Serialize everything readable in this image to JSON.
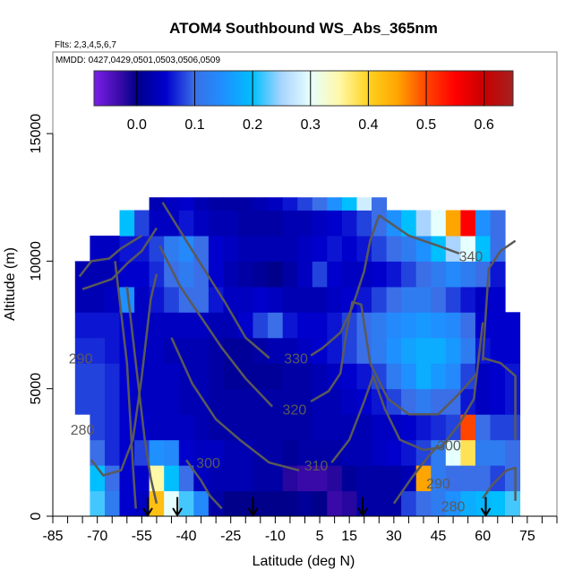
{
  "chart_data": {
    "type": "heatmap",
    "title": "ATOM4 Southbound WS_Abs_365nm",
    "subtitle_flights": "Flts: 2,3,4,5,6,7",
    "subtitle_dates": "MMDD: 0427,0429,0501,0503,0506,0509",
    "xlabel": "Latitude (deg N)",
    "ylabel": "Altitude (m)",
    "xlim": [
      -85,
      85
    ],
    "ylim": [
      0,
      18200
    ],
    "xticks": [
      -85,
      -70,
      -55,
      -40,
      -25,
      -10,
      5,
      15,
      30,
      45,
      60,
      75
    ],
    "xminor_step": 5,
    "yticks": [
      0,
      5000,
      10000,
      15000
    ],
    "colorbar": {
      "range": [
        -0.074,
        0.65
      ],
      "ticks": [
        0.0,
        0.1,
        0.2,
        0.3,
        0.4,
        0.5,
        0.6
      ],
      "tick_labels": [
        "0.0",
        "0.1",
        "0.2",
        "0.3",
        "0.4",
        "0.5",
        "0.6"
      ],
      "stops": [
        {
          "v": -0.074,
          "c": "#7a1fe8"
        },
        {
          "v": -0.03,
          "c": "#3a0aa8"
        },
        {
          "v": 0.0,
          "c": "#00008b"
        },
        {
          "v": 0.05,
          "c": "#0000cd"
        },
        {
          "v": 0.1,
          "c": "#3a6fe8"
        },
        {
          "v": 0.15,
          "c": "#1e90ff"
        },
        {
          "v": 0.2,
          "c": "#00bfff"
        },
        {
          "v": 0.25,
          "c": "#a9d4ff"
        },
        {
          "v": 0.3,
          "c": "#e6ffff"
        },
        {
          "v": 0.35,
          "c": "#fff8a8"
        },
        {
          "v": 0.4,
          "c": "#ffd21f"
        },
        {
          "v": 0.45,
          "c": "#ffa500"
        },
        {
          "v": 0.5,
          "c": "#ff4500"
        },
        {
          "v": 0.55,
          "c": "#ff0000"
        },
        {
          "v": 0.6,
          "c": "#c80000"
        },
        {
          "v": 0.65,
          "c": "#a52020"
        }
      ]
    },
    "grid_lat_start": -75,
    "grid_lat_step": 5,
    "grid_alt_step": 1000,
    "values": [
      [
        null,
        0.22,
        0.12,
        0.05,
        0.04,
        0.42,
        0.3,
        0.22,
        0.14,
        0.02,
        0.0,
        0.0,
        0.0,
        0.0,
        0.0,
        0.01,
        0.0,
        -0.03,
        -0.02,
        0.02,
        0.02,
        0.02,
        0.08,
        0.1,
        0.12,
        0.15,
        0.18,
        0.19,
        0.2,
        0.22
      ],
      [
        null,
        0.2,
        0.1,
        0.05,
        0.05,
        0.35,
        0.2,
        0.1,
        0.04,
        0.03,
        0.03,
        0.03,
        0.02,
        0.02,
        -0.02,
        -0.03,
        -0.03,
        -0.02,
        0.01,
        0.02,
        0.02,
        0.02,
        0.03,
        0.45,
        0.12,
        0.1,
        0.1,
        0.1,
        0.08,
        0.1
      ],
      [
        null,
        0.1,
        0.07,
        0.05,
        0.08,
        0.15,
        0.14,
        0.05,
        0.04,
        0.04,
        0.03,
        0.03,
        0.02,
        0.02,
        0.01,
        0.02,
        0.02,
        0.02,
        0.03,
        0.03,
        0.04,
        0.05,
        0.06,
        0.08,
        0.12,
        0.3,
        0.38,
        0.12,
        0.12,
        0.1
      ],
      [
        null,
        0.08,
        0.07,
        0.05,
        0.05,
        0.04,
        0.04,
        0.04,
        0.03,
        0.02,
        0.02,
        0.02,
        0.02,
        0.02,
        0.02,
        0.02,
        0.03,
        0.03,
        0.03,
        0.03,
        0.04,
        0.04,
        0.05,
        0.06,
        0.07,
        0.08,
        0.5,
        0.1,
        0.08,
        0.08
      ],
      [
        0.08,
        0.08,
        0.07,
        0.05,
        0.04,
        0.04,
        0.04,
        0.03,
        0.03,
        0.02,
        0.02,
        0.02,
        0.02,
        0.02,
        0.02,
        0.02,
        0.03,
        0.03,
        0.04,
        0.05,
        0.06,
        0.08,
        0.1,
        0.12,
        0.1,
        0.1,
        0.06,
        0.04,
        0.05,
        0.06
      ],
      [
        0.08,
        0.08,
        0.07,
        0.05,
        0.04,
        0.04,
        0.04,
        0.03,
        0.03,
        0.02,
        0.01,
        0.01,
        0.01,
        0.01,
        0.02,
        0.02,
        0.03,
        0.04,
        0.05,
        0.06,
        0.08,
        0.12,
        0.15,
        0.18,
        0.16,
        0.14,
        0.08,
        0.04,
        0.05,
        0.06
      ],
      [
        0.07,
        0.07,
        0.06,
        0.05,
        0.04,
        0.04,
        0.03,
        0.03,
        0.03,
        0.02,
        0.01,
        0.01,
        0.02,
        0.03,
        0.03,
        0.04,
        0.05,
        0.06,
        0.08,
        0.1,
        0.12,
        0.15,
        0.17,
        0.18,
        0.18,
        0.16,
        0.12,
        0.06,
        0.05,
        0.05
      ],
      [
        0.06,
        0.06,
        0.06,
        0.05,
        0.04,
        0.04,
        0.04,
        0.04,
        0.04,
        0.03,
        0.03,
        0.05,
        0.08,
        0.1,
        0.06,
        0.05,
        0.05,
        0.06,
        0.08,
        0.1,
        0.12,
        0.14,
        0.15,
        0.16,
        0.15,
        0.14,
        0.1,
        0.05,
        0.05,
        0.05
      ],
      [
        0.03,
        0.03,
        0.04,
        0.15,
        0.04,
        0.06,
        0.08,
        0.1,
        0.1,
        0.06,
        0.04,
        0.04,
        0.05,
        0.04,
        0.03,
        0.03,
        0.03,
        0.04,
        0.05,
        0.06,
        0.08,
        0.1,
        0.12,
        0.12,
        0.1,
        0.08,
        0.06,
        0.04,
        0.05,
        null
      ],
      [
        0.03,
        0.03,
        0.03,
        0.05,
        0.05,
        0.07,
        0.1,
        0.12,
        0.1,
        0.05,
        0.03,
        0.02,
        0.01,
        0.0,
        0.02,
        0.04,
        0.08,
        0.05,
        0.04,
        0.04,
        0.05,
        0.06,
        0.08,
        0.1,
        0.12,
        0.14,
        0.12,
        0.1,
        0.06,
        null
      ],
      [
        null,
        0.04,
        0.04,
        0.06,
        0.06,
        0.08,
        0.12,
        0.14,
        0.1,
        0.05,
        0.04,
        0.03,
        0.03,
        0.03,
        0.03,
        0.04,
        0.05,
        0.06,
        0.05,
        0.06,
        0.08,
        0.1,
        0.12,
        0.15,
        0.2,
        0.25,
        0.3,
        0.2,
        0.1,
        null
      ],
      [
        null,
        null,
        null,
        0.2,
        0.08,
        0.04,
        0.04,
        0.06,
        0.04,
        0.03,
        0.03,
        0.02,
        0.02,
        0.02,
        0.03,
        0.03,
        0.04,
        0.05,
        0.06,
        0.08,
        0.1,
        0.15,
        0.2,
        0.25,
        0.3,
        0.45,
        0.55,
        0.15,
        0.1,
        null
      ],
      [
        null,
        null,
        null,
        null,
        null,
        0.03,
        0.04,
        0.05,
        0.03,
        0.02,
        0.02,
        0.02,
        0.03,
        0.04,
        0.06,
        0.08,
        0.1,
        0.15,
        0.2,
        0.28,
        0.1,
        null,
        null,
        null,
        null,
        null,
        null,
        null,
        null,
        null
      ]
    ],
    "row_top_alt_last": 12500,
    "contour_label_values": [
      "340",
      "330",
      "320",
      "310",
      "300",
      "300",
      "290",
      "290",
      "280",
      "280"
    ],
    "contour_label_points": [
      [
        56,
        10200
      ],
      [
        -3,
        6200
      ],
      [
        -3.5,
        4200
      ],
      [
        3.8,
        2000
      ],
      [
        -32.6,
        2100
      ],
      [
        48.6,
        2800
      ],
      [
        -75.6,
        6200
      ],
      [
        45,
        1300
      ],
      [
        -75,
        3400
      ],
      [
        50,
        400
      ]
    ],
    "contours": [
      [
        [
          25,
          11800
        ],
        [
          35,
          11000
        ],
        [
          45,
          10600
        ],
        [
          52,
          10300
        ]
      ],
      [
        [
          -48,
          12300
        ],
        [
          -40,
          10800
        ],
        [
          -33,
          9500
        ],
        [
          -27,
          8400
        ],
        [
          -20,
          7000
        ],
        [
          -12,
          6200
        ]
      ],
      [
        [
          2,
          6300
        ],
        [
          6,
          6600
        ],
        [
          12,
          7200
        ],
        [
          16,
          8200
        ],
        [
          20,
          9600
        ],
        [
          22,
          10800
        ],
        [
          25,
          11800
        ]
      ],
      [
        [
          -49,
          10600
        ],
        [
          -42,
          9000
        ],
        [
          -35,
          7800
        ],
        [
          -28,
          6600
        ],
        [
          -20,
          5400
        ],
        [
          -11,
          4300
        ]
      ],
      [
        [
          2,
          4500
        ],
        [
          8,
          4900
        ],
        [
          12,
          5600
        ],
        [
          14,
          7200
        ],
        [
          16,
          8400
        ],
        [
          19,
          8300
        ],
        [
          22,
          6000
        ],
        [
          28,
          4600
        ],
        [
          35,
          4000
        ],
        [
          45,
          4000
        ],
        [
          52,
          4800
        ],
        [
          58,
          5600
        ]
      ],
      [
        [
          -45,
          7000
        ],
        [
          -38,
          5200
        ],
        [
          -30,
          3800
        ],
        [
          -22,
          3000
        ],
        [
          -12,
          2100
        ],
        [
          -2,
          1800
        ]
      ],
      [
        [
          9,
          2100
        ],
        [
          15,
          3000
        ],
        [
          20,
          4500
        ],
        [
          23,
          5500
        ],
        [
          27,
          4200
        ],
        [
          32,
          3000
        ],
        [
          40,
          2600
        ],
        [
          46,
          2700
        ],
        [
          52,
          3600
        ],
        [
          57,
          4600
        ],
        [
          60,
          7600
        ]
      ],
      [
        [
          -40,
          2200
        ],
        [
          -35,
          1400
        ],
        [
          -32,
          800
        ],
        [
          -28,
          300
        ]
      ],
      [
        [
          30,
          500
        ],
        [
          36,
          1500
        ],
        [
          40,
          2100
        ],
        [
          45,
          2800
        ]
      ],
      [
        [
          -72,
          2200
        ],
        [
          -68,
          1600
        ],
        [
          -62,
          1800
        ],
        [
          -58,
          3000
        ],
        [
          -55,
          5500
        ],
        [
          -52,
          8500
        ],
        [
          -50,
          9500
        ]
      ],
      [
        [
          -60,
          9000
        ],
        [
          -58,
          7000
        ],
        [
          -56,
          5000
        ],
        [
          -54,
          3000
        ],
        [
          -52,
          1500
        ],
        [
          -50,
          500
        ]
      ],
      [
        [
          -64,
          10000
        ],
        [
          -62,
          8000
        ],
        [
          -60,
          6000
        ],
        [
          -59,
          4000
        ],
        [
          -58,
          2000
        ],
        [
          -57,
          300
        ]
      ],
      [
        [
          -75,
          8900
        ],
        [
          -70,
          9100
        ],
        [
          -65,
          9300
        ],
        [
          -60,
          9900
        ],
        [
          -55,
          10400
        ],
        [
          -50,
          11300
        ]
      ],
      [
        [
          -76,
          9400
        ],
        [
          -72,
          10000
        ],
        [
          -66,
          10100
        ],
        [
          -62,
          10500
        ],
        [
          -55,
          11000
        ]
      ],
      [
        [
          60,
          700
        ],
        [
          63,
          1200
        ],
        [
          68,
          1800
        ],
        [
          71,
          1900
        ],
        [
          71,
          600
        ]
      ],
      [
        [
          60,
          6100
        ],
        [
          62,
          9700
        ],
        [
          66,
          10400
        ],
        [
          71,
          10800
        ]
      ],
      [
        [
          60,
          6200
        ],
        [
          66,
          6000
        ],
        [
          71,
          5500
        ],
        [
          71,
          3000
        ]
      ]
    ],
    "flight_arrows_lat": [
      -53,
      -43,
      -17.5,
      19.5,
      61
    ],
    "colors": {
      "contour": "#5a5a5a",
      "arrow": "#000000",
      "axis": "#000000",
      "box": "#808080"
    }
  }
}
